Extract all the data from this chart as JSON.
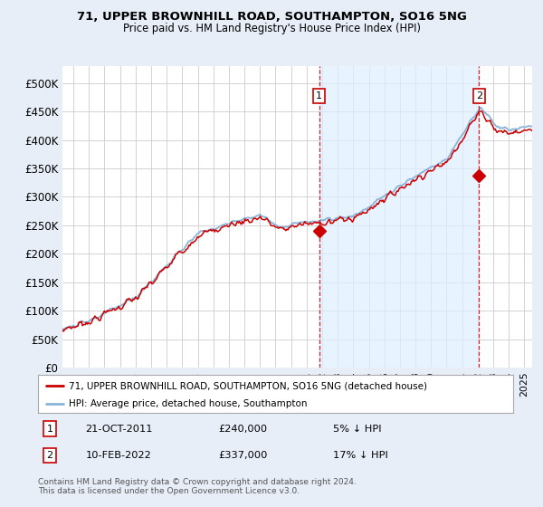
{
  "title": "71, UPPER BROWNHILL ROAD, SOUTHAMPTON, SO16 5NG",
  "subtitle": "Price paid vs. HM Land Registry's House Price Index (HPI)",
  "bg_color": "#e8eef8",
  "plot_bg_color": "#ffffff",
  "legend_line1": "71, UPPER BROWNHILL ROAD, SOUTHAMPTON, SO16 5NG (detached house)",
  "legend_line2": "HPI: Average price, detached house, Southampton",
  "footnote": "Contains HM Land Registry data © Crown copyright and database right 2024.\nThis data is licensed under the Open Government Licence v3.0.",
  "annotation1_label": "1",
  "annotation1_date": "21-OCT-2011",
  "annotation1_price": "£240,000",
  "annotation1_hpi": "5% ↓ HPI",
  "annotation2_label": "2",
  "annotation2_date": "10-FEB-2022",
  "annotation2_price": "£337,000",
  "annotation2_hpi": "17% ↓ HPI",
  "hpi_color": "#8ab4d8",
  "paid_color": "#cc0000",
  "vline_color": "#cc0000",
  "shade_color": "#ddeeff",
  "yticks": [
    0,
    50000,
    100000,
    150000,
    200000,
    250000,
    300000,
    350000,
    400000,
    450000,
    500000
  ],
  "ylabels": [
    "£0",
    "£50K",
    "£100K",
    "£150K",
    "£200K",
    "£250K",
    "£300K",
    "£350K",
    "£400K",
    "£450K",
    "£500K"
  ],
  "ylim": [
    0,
    530000
  ],
  "xlim_left": 1995.3,
  "xlim_right": 2025.5,
  "sale1_x": 2011.8,
  "sale1_y": 240000,
  "sale2_x": 2022.08,
  "sale2_y": 337000
}
